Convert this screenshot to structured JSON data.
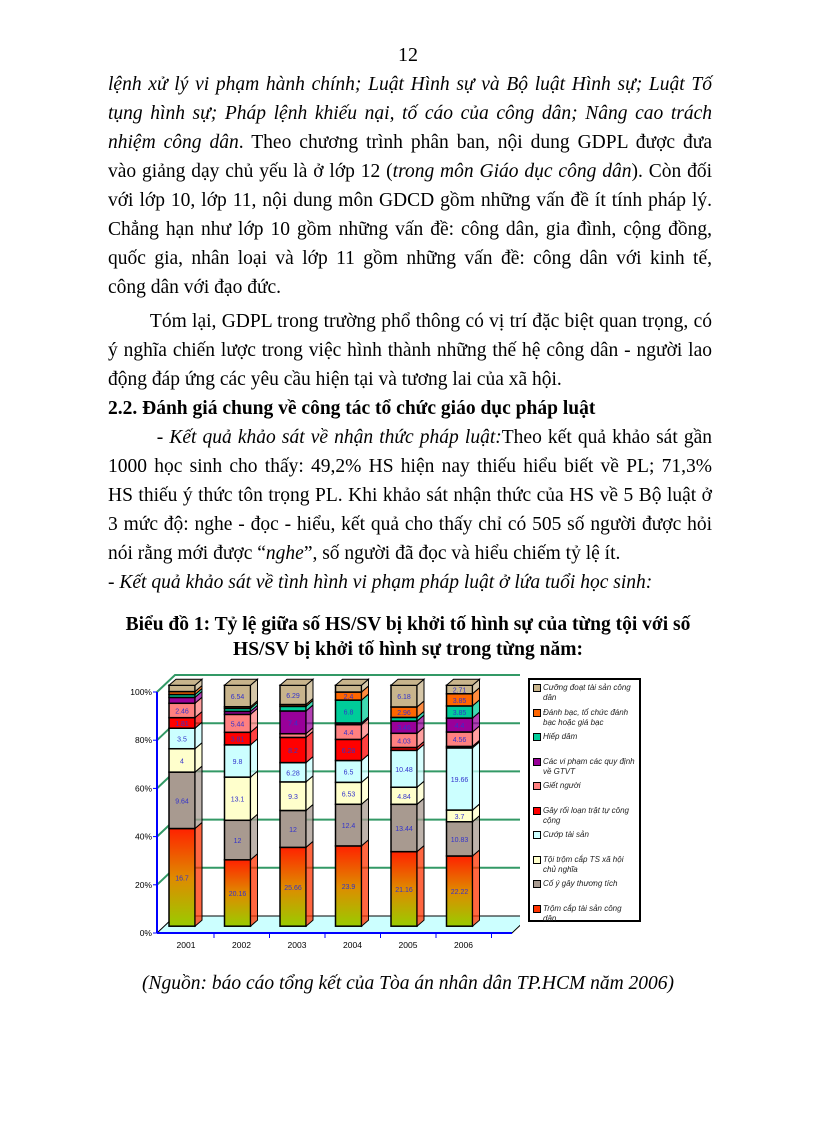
{
  "page_number": "12",
  "body_lines": [
    [
      {
        "t": "lệnh xử lý vi phạm hành chính; Luật Hình sự và Bộ luật Hình sự; Luật Tố",
        "i": true
      }
    ],
    [
      {
        "t": "tụng hình sự; Pháp lệnh khiếu nại, tố cáo của công dân; Nâng cao trách",
        "i": true
      }
    ],
    [
      {
        "t": "nhiệm công dân",
        "i": true
      },
      {
        "t": ". Theo chương trình phân ban, nội dung GDPL được đưa"
      }
    ],
    [
      {
        "t": "vào giảng dạy chủ yếu là ở lớp 12 ("
      },
      {
        "t": "trong môn Giáo dục công dân",
        "i": true
      },
      {
        "t": "). Còn đối"
      }
    ],
    [
      {
        "t": "với lớp 10, lớp 11, nội dung môn GDCD gồm những vấn đề ít tính pháp lý."
      }
    ],
    [
      {
        "t": "Chẳng hạn như lớp 10 gồm những vấn đề: công dân, gia đình, cộng đồng,"
      }
    ],
    [
      {
        "t": "quốc gia, nhân loại và lớp 11 gồm những vấn đề: công dân với kinh tế,"
      }
    ],
    [
      {
        "t": "công dân với đạo đức."
      }
    ],
    [
      {
        "t": "        Tóm lại, GDPL trong trường phổ thông có vị trí đặc biệt quan trọng, có"
      }
    ],
    [
      {
        "t": "ý nghĩa chiến lược trong việc hình thành những thế hệ công dân - người lao"
      }
    ],
    [
      {
        "t": "động đáp ứng các yêu cầu hiện tại và tương lai của xã hội."
      }
    ],
    [
      {
        "t": "2.2. Đánh giá chung về công tác tổ chức giáo dục pháp luật",
        "b": true
      }
    ],
    [
      {
        "t": "        - Kết quả khảo sát về nhận thức pháp luật:",
        "i": true
      },
      {
        "t": "Theo kết quả khảo sát gần"
      }
    ],
    [
      {
        "t": "1000 học sinh cho thấy: 49,2% HS hiện nay thiếu hiểu biết về PL; 71,3%"
      }
    ],
    [
      {
        "t": "HS thiếu ý thức tôn trọng PL. Khi khảo sát nhận thức của HS về 5 Bộ luật ở"
      }
    ],
    [
      {
        "t": "3 mức độ: nghe - đọc - hiểu, kết quả cho thấy chỉ có 505 số người được hỏi"
      }
    ],
    [
      {
        "t": "nói rằng mới được “"
      },
      {
        "t": "nghe",
        "i": true
      },
      {
        "t": "”, số người đã đọc và hiểu chiếm tỷ lệ ít."
      }
    ],
    [
      {
        "t": "- Kết quả khảo sát về tình hình vi phạm pháp luật ở lứa tuổi học sinh:",
        "i": true
      }
    ]
  ],
  "chart_title_lines": [
    "Biểu đồ 1: Tỷ lệ giữa số HS/SV bị khởi tố hình sự của từng tội với số",
    "HS/SV bị khởi tố hình sự trong từng năm:"
  ],
  "source": "(Nguồn: báo cáo tổng kết của Tòa án nhân dân TP.HCM năm 2006)",
  "chart_data": {
    "type": "bar",
    "stacked": "percent",
    "style": "3d",
    "categories": [
      "2001",
      "2002",
      "2003",
      "2004",
      "2005",
      "2006"
    ],
    "yticks": [
      "0%",
      "20%",
      "40%",
      "60%",
      "80%",
      "100%"
    ],
    "ylim": [
      0,
      100
    ],
    "grid": true,
    "legend_position": "right",
    "series": [
      {
        "name": "Trộm cắp tài sản công dân",
        "color": "#ff3300",
        "values": [
          16.7,
          20.16,
          25.66,
          23.9,
          21.16,
          22.22
        ]
      },
      {
        "name": "Cố ý gây thương tích",
        "color": "#a89a90",
        "values": [
          9.64,
          12,
          12,
          12.4,
          13.44,
          10.83
        ]
      },
      {
        "name": "Tội trộm cắp TS xã hội chủ nghĩa",
        "color": "#ffffcc",
        "values": [
          4,
          13.1,
          9.3,
          6.53,
          4.84,
          3.7
        ]
      },
      {
        "name": "Cướp tài sản",
        "color": "#ccffff",
        "values": [
          3.5,
          9.8,
          6.28,
          6.5,
          10.48,
          19.66
        ]
      },
      {
        "name": "Gây rối loạn trật tự công cộng",
        "color": "#ff0000",
        "values": [
          1.81,
          3.81,
          8.2,
          6.28,
          0.81,
          0.48
        ]
      },
      {
        "name": "Giết người",
        "color": "#ff8080",
        "values": [
          2.46,
          5.44,
          1.2,
          4.4,
          4.03,
          4.56
        ]
      },
      {
        "name": "Các vi phạm các quy định về GTVT",
        "color": "#990099",
        "values": [
          1,
          0.91,
          7.4,
          0.5,
          3.46,
          4.4
        ]
      },
      {
        "name": "Hiếp dâm",
        "color": "#00cc99",
        "values": [
          0.5,
          0.91,
          1.5,
          6.8,
          1.05,
          3.85
        ]
      },
      {
        "name": "Đánh bạc, tổ chức đánh bạc hoặc giá bạc",
        "color": "#ff6600",
        "values": [
          0.5,
          0.5,
          0.6,
          2.4,
          2.96,
          3.85
        ]
      },
      {
        "name": "Cưỡng đoạt tài sản công dân",
        "color": "#c8b48c",
        "values": [
          1.09,
          6.54,
          6.29,
          2.04,
          6.18,
          2.71
        ]
      }
    ]
  }
}
